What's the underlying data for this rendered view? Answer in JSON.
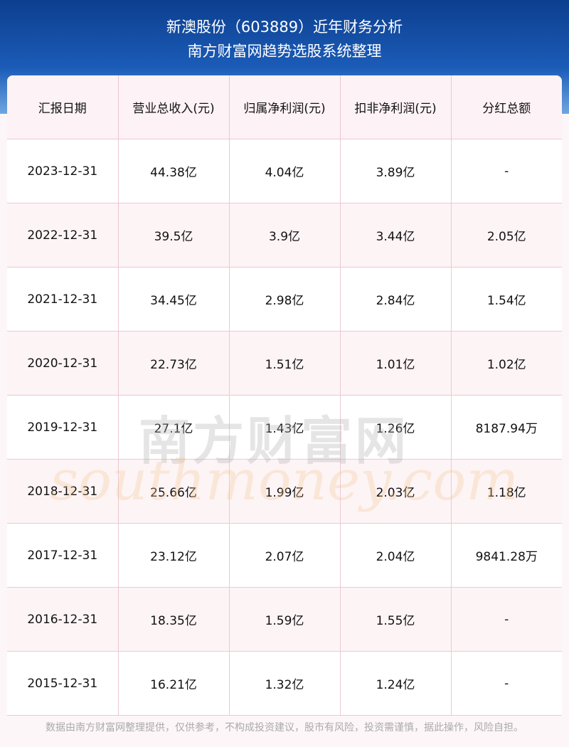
{
  "header": {
    "title": "新澳股份（603889）近年财务分析",
    "subtitle": "南方财富网趋势选股系统整理"
  },
  "table": {
    "columns": [
      "汇报日期",
      "营业总收入(元)",
      "归属净利润(元)",
      "扣非净利润(元)",
      "分红总额"
    ],
    "rows": [
      [
        "2023-12-31",
        "44.38亿",
        "4.04亿",
        "3.89亿",
        "-"
      ],
      [
        "2022-12-31",
        "39.5亿",
        "3.9亿",
        "3.44亿",
        "2.05亿"
      ],
      [
        "2021-12-31",
        "34.45亿",
        "2.98亿",
        "2.84亿",
        "1.54亿"
      ],
      [
        "2020-12-31",
        "22.73亿",
        "1.51亿",
        "1.01亿",
        "1.02亿"
      ],
      [
        "2019-12-31",
        "27.1亿",
        "1.43亿",
        "1.26亿",
        "8187.94万"
      ],
      [
        "2018-12-31",
        "25.66亿",
        "1.99亿",
        "2.03亿",
        "1.18亿"
      ],
      [
        "2017-12-31",
        "23.12亿",
        "2.07亿",
        "2.04亿",
        "9841.28万"
      ],
      [
        "2016-12-31",
        "18.35亿",
        "1.59亿",
        "1.55亿",
        "-"
      ],
      [
        "2015-12-31",
        "16.21亿",
        "1.32亿",
        "1.24亿",
        "-"
      ]
    ]
  },
  "watermark": {
    "name": "南方财富网",
    "url": "southmoney.com"
  },
  "footer": "数据由南方财富网整理提供，仅供参考，不构成投资建议，股市有风险，投资需谨慎，据此操作，风险自担。"
}
